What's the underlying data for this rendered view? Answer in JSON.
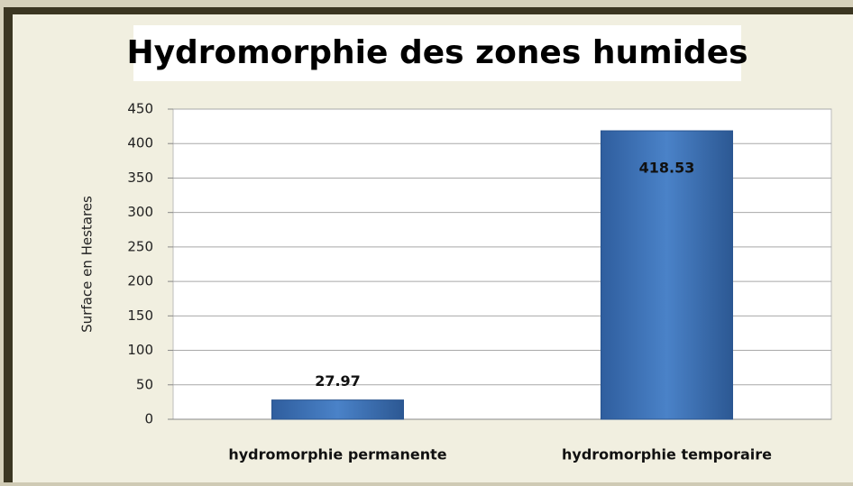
{
  "chart_data": {
    "type": "bar",
    "title": "Hydromorphie des zones humides",
    "y_label": "Surface en Hestares",
    "categories": [
      "hydromorphie permanente",
      "hydromorphie temporaire"
    ],
    "values": [
      27.97,
      418.53
    ],
    "color": "#3f73b5",
    "ylim": [
      0,
      450
    ],
    "yticks": [
      0,
      50,
      100,
      150,
      200,
      250,
      300,
      350,
      400,
      450
    ],
    "grid": true
  }
}
